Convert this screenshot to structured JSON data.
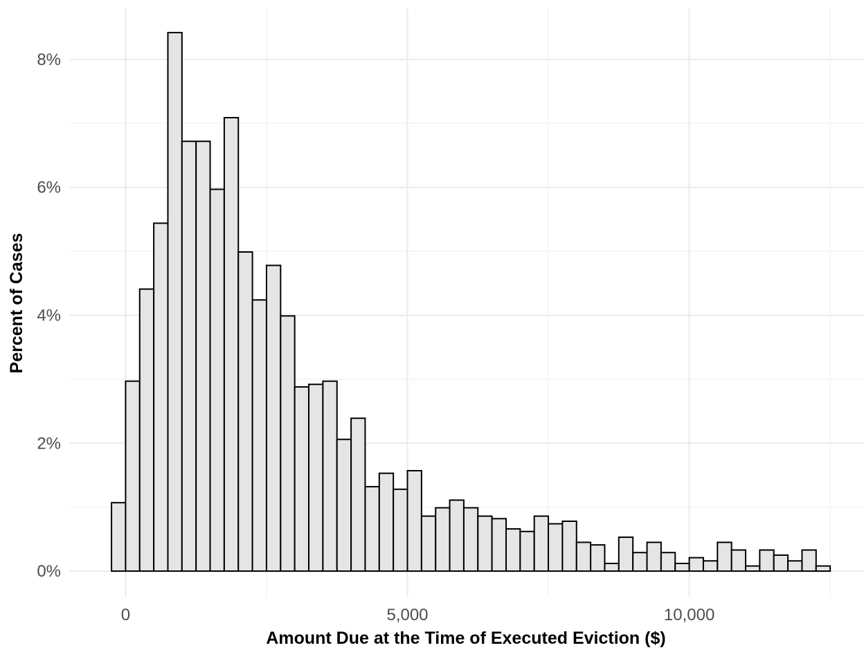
{
  "chart_data": {
    "type": "bar",
    "title": "",
    "xlabel": "Amount Due at the Time of Executed Eviction ($)",
    "ylabel": "Percent of Cases",
    "bin_width": 250,
    "bin_starts": [
      -250,
      0,
      250,
      500,
      750,
      1000,
      1250,
      1500,
      1750,
      2000,
      2250,
      2500,
      2750,
      3000,
      3250,
      3500,
      3750,
      4000,
      4250,
      4500,
      4750,
      5000,
      5250,
      5500,
      5750,
      6000,
      6250,
      6500,
      6750,
      7000,
      7250,
      7500,
      7750,
      8000,
      8250,
      8500,
      8750,
      9000,
      9250,
      9500,
      9750,
      10000,
      10250,
      10500,
      10750,
      11000,
      11250,
      11500,
      11750,
      12000,
      12250
    ],
    "values": [
      1.07,
      2.97,
      4.41,
      5.44,
      8.42,
      6.72,
      6.72,
      5.97,
      7.09,
      4.99,
      4.24,
      4.78,
      3.99,
      2.88,
      2.92,
      2.97,
      2.06,
      2.39,
      1.32,
      1.53,
      1.28,
      1.57,
      0.86,
      0.99,
      1.11,
      0.99,
      0.86,
      0.82,
      0.66,
      0.62,
      0.86,
      0.74,
      0.78,
      0.45,
      0.41,
      0.12,
      0.53,
      0.29,
      0.45,
      0.29,
      0.12,
      0.21,
      0.16,
      0.45,
      0.33,
      0.08,
      0.33,
      0.25,
      0.16,
      0.33,
      0.08
    ],
    "xlim": [
      -1000,
      13100
    ],
    "ylim": [
      -0.4,
      8.8
    ],
    "x_ticks": [
      0,
      5000,
      10000
    ],
    "x_tick_labels": [
      "0",
      "5,000",
      "10,000"
    ],
    "y_ticks": [
      0,
      2,
      4,
      6,
      8
    ],
    "y_tick_labels": [
      "0%",
      "2%",
      "4%",
      "6%",
      "8%"
    ],
    "grid": true,
    "legend": "none",
    "colors": {
      "bar_fill": "#e5e5e5",
      "bar_stroke": "#000000",
      "grid": "#ebebeb"
    }
  }
}
